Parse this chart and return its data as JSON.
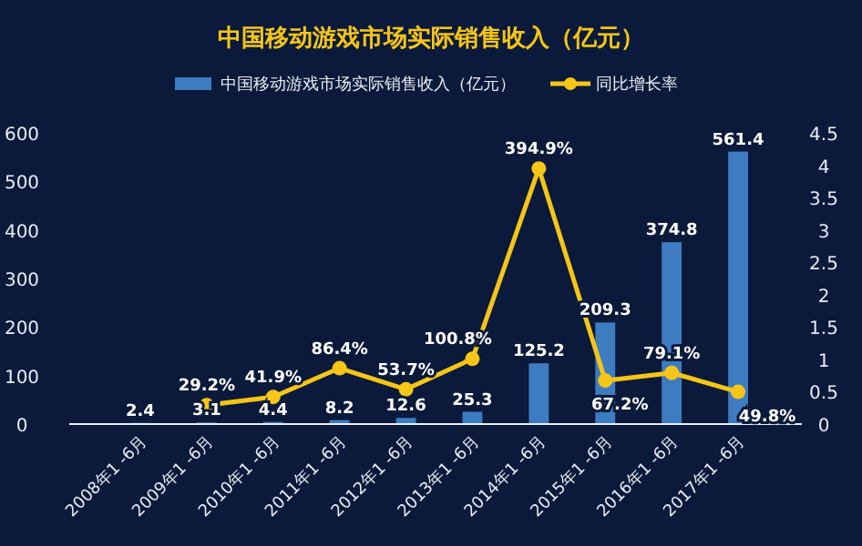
{
  "chart_data": {
    "type": "bar",
    "title": "中国移动游戏市场实际销售收入（亿元）",
    "categories": [
      "2008年1 -6月",
      "2009年1 -6月",
      "2010年1 -6月",
      "2011年1 -6月",
      "2012年1 -6月",
      "2013年1 -6月",
      "2014年1 -6月",
      "2015年1 -6月",
      "2016年1 -6月",
      "2017年1 -6月"
    ],
    "series": [
      {
        "name": "中国移动游戏市场实际销售收入（亿元）",
        "color": "#3d7cc0",
        "values": [
          2.4,
          3.1,
          4.4,
          8.2,
          12.6,
          25.3,
          125.2,
          209.3,
          374.8,
          561.4
        ],
        "value_labels": [
          "2.4",
          "3.1",
          "4.4",
          "8.2",
          "12.6",
          "25.3",
          "125.2",
          "209.3",
          "374.8",
          "561.4"
        ]
      },
      {
        "name": "同比增长率",
        "type": "line",
        "axis": "y2",
        "color": "#f5c518",
        "marker": "circle",
        "values": [
          null,
          0.292,
          0.419,
          0.864,
          0.537,
          1.008,
          3.949,
          0.672,
          0.791,
          0.498
        ],
        "value_labels": [
          null,
          "29.2%",
          "41.9%",
          "86.4%",
          "53.7%",
          "100.8%",
          "394.9%",
          "67.2%",
          "79.1%",
          "49.8%"
        ]
      }
    ],
    "ylim": [
      0,
      600
    ],
    "yticks": [
      0,
      100,
      200,
      300,
      400,
      500,
      600
    ],
    "y2lim": [
      0,
      4.5
    ],
    "y2ticks": [
      0,
      0.5,
      1,
      1.5,
      2,
      2.5,
      3,
      3.5,
      4,
      4.5
    ],
    "legend": "top",
    "grid": false
  }
}
